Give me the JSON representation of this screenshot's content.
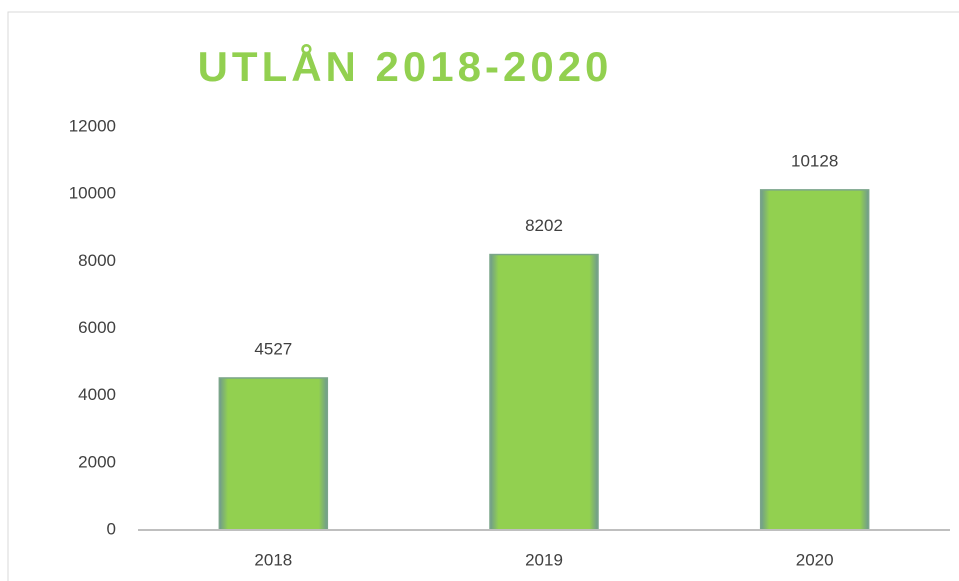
{
  "chart_data": {
    "type": "bar",
    "title": "UTLÅN 2018-2020",
    "categories": [
      "2018",
      "2019",
      "2020"
    ],
    "values": [
      4527,
      8202,
      10128
    ],
    "color": "#92d050",
    "ylim": [
      0,
      12000
    ],
    "yticks": [
      0,
      2000,
      4000,
      6000,
      8000,
      10000,
      12000
    ],
    "grid": false,
    "data_labels": true
  }
}
